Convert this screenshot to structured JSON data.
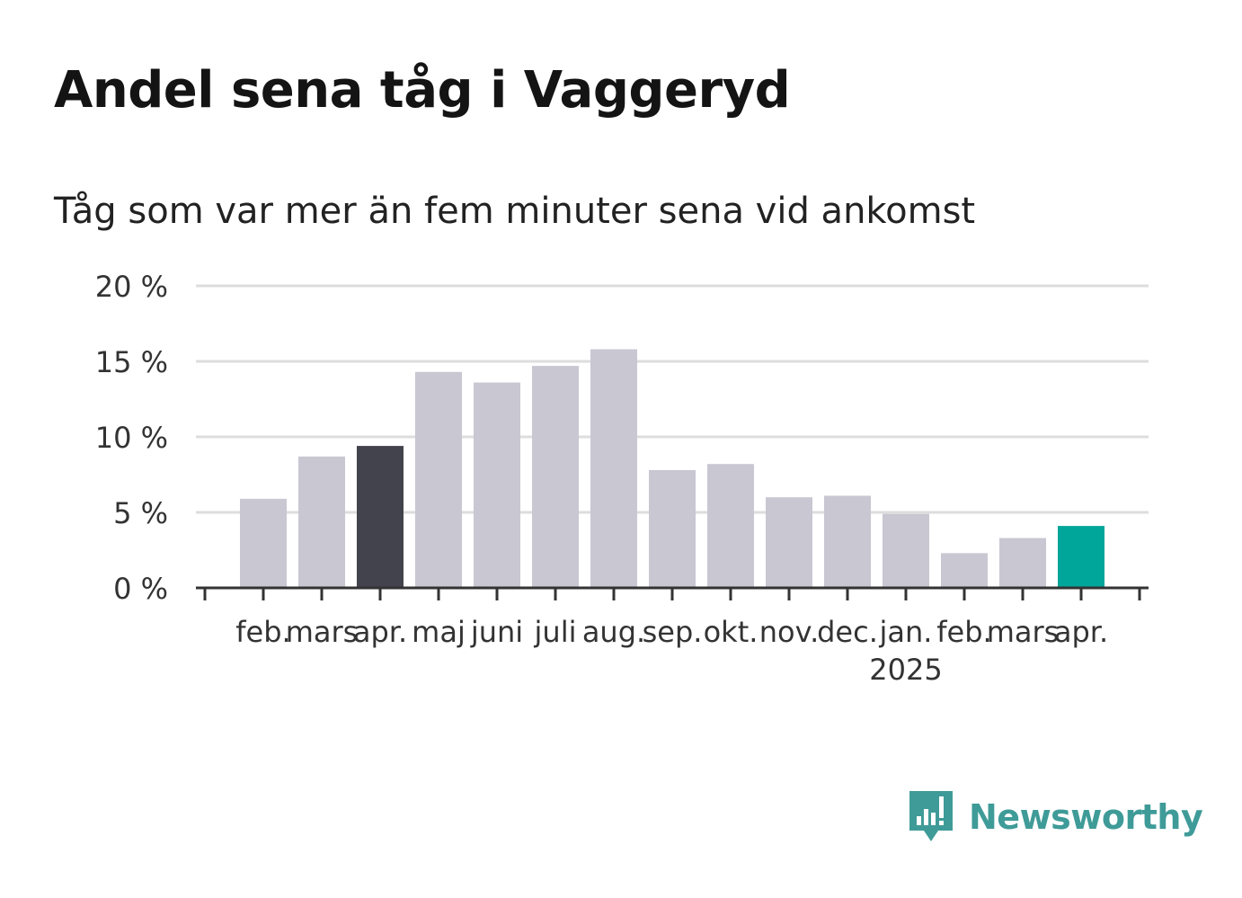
{
  "title": "Andel sena tåg i Vaggeryd",
  "subtitle": "Tåg som var mer än fem minuter sena vid ankomst",
  "brand": {
    "name": "Newsworthy",
    "color": "#3f9b98",
    "icon": "newsworthy-logo-icon"
  },
  "colors": {
    "default_bar": "#c8c7d2",
    "highlight_prev": "#43434d",
    "highlight_current": "#00a699",
    "grid": "#dddddd",
    "axis": "#333333",
    "text": "#333333"
  },
  "chart_data": {
    "type": "bar",
    "categories": [
      "feb.",
      "mars",
      "apr.",
      "maj",
      "juni",
      "juli",
      "aug.",
      "sep.",
      "okt.",
      "nov.",
      "dec.",
      "jan.",
      "feb.",
      "mars",
      "apr."
    ],
    "category_sublabels": [
      "",
      "",
      "",
      "",
      "",
      "",
      "",
      "",
      "",
      "",
      "",
      "2025",
      "",
      "",
      ""
    ],
    "values": [
      5.9,
      8.7,
      9.4,
      14.3,
      13.6,
      14.7,
      15.8,
      7.8,
      8.2,
      6.0,
      6.1,
      4.9,
      2.3,
      3.3,
      4.1
    ],
    "highlight": [
      "default",
      "default",
      "previous",
      "default",
      "default",
      "default",
      "default",
      "default",
      "default",
      "default",
      "default",
      "default",
      "default",
      "default",
      "current"
    ],
    "ylim": [
      0,
      20
    ],
    "yticks": [
      0,
      5,
      10,
      15,
      20
    ],
    "ytick_labels": [
      "0 %",
      "5 %",
      "10 %",
      "15 %",
      "20 %"
    ],
    "grid": true,
    "xlabel": "",
    "ylabel": ""
  }
}
